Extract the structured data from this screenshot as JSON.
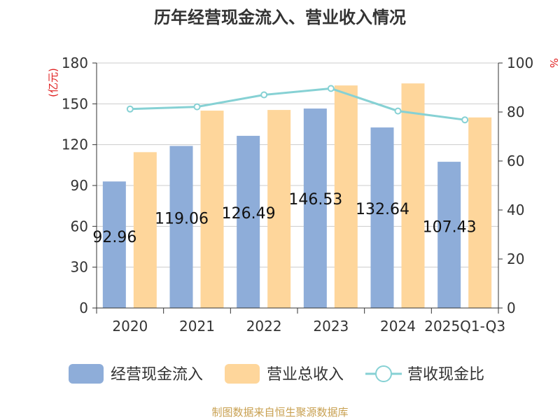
{
  "chart_data": {
    "type": "bar",
    "title": "历年经营现金流入、营业收入情况",
    "categories": [
      "2020",
      "2021",
      "2022",
      "2023",
      "2024",
      "2025Q1-Q3"
    ],
    "series": [
      {
        "name": "经营现金流入",
        "kind": "bar",
        "axis": "left",
        "color": "#8eadd9",
        "values": [
          92.96,
          119.06,
          126.49,
          146.53,
          132.64,
          107.43
        ],
        "labels": [
          "92.96",
          "119.06",
          "126.49",
          "146.53",
          "132.64",
          "107.43"
        ]
      },
      {
        "name": "营业总收入",
        "kind": "bar",
        "axis": "left",
        "color": "#fed69b",
        "values": [
          114.5,
          145.0,
          145.5,
          163.5,
          165.0,
          140.0
        ]
      },
      {
        "name": "营收现金比",
        "kind": "line",
        "axis": "right",
        "color": "#86d1d4",
        "values": [
          81.2,
          82.1,
          87.0,
          89.6,
          80.4,
          76.8
        ]
      }
    ],
    "y_left": {
      "label": "(亿元)",
      "min": 0,
      "max": 180,
      "ticks": [
        "0",
        "30",
        "60",
        "90",
        "120",
        "150",
        "180"
      ]
    },
    "y_right": {
      "label": "%",
      "min": 0,
      "max": 100,
      "ticks": [
        "0",
        "20",
        "40",
        "60",
        "80",
        "100"
      ]
    },
    "grid": true,
    "legend_position": "bottom"
  },
  "footer": {
    "source": "制图数据来自恒生聚源数据库"
  },
  "colors": {
    "title": "#333333",
    "axis": "#333333",
    "grid": "#cccccc",
    "unit": "#e02020",
    "source": "#c8a050"
  }
}
